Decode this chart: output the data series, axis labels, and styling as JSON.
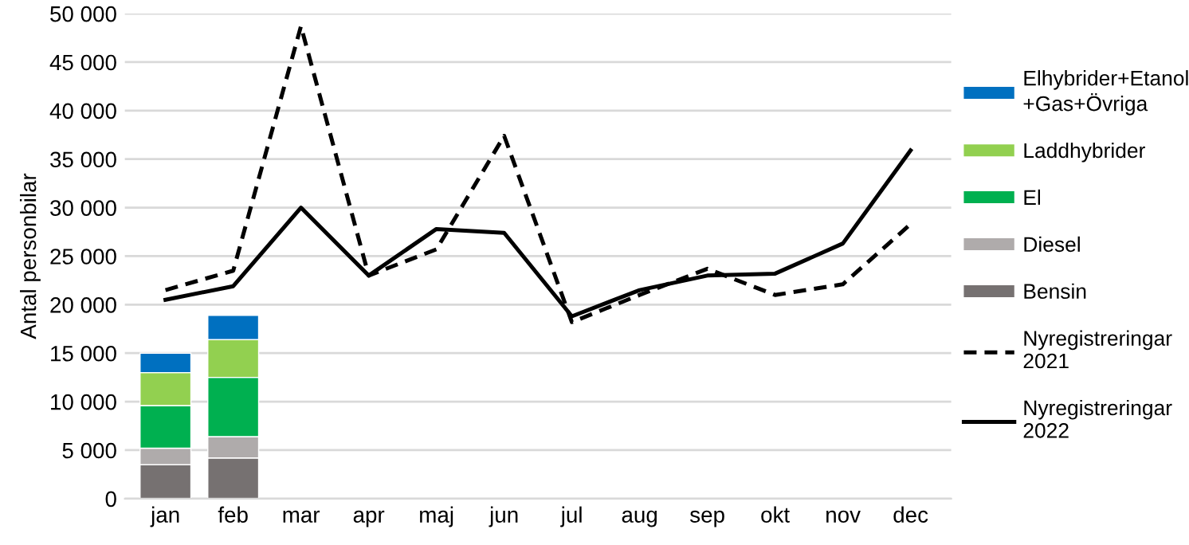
{
  "chart_data": {
    "type": "bar",
    "stacked": true,
    "ylabel": "Antal personbilar",
    "categories": [
      "jan",
      "feb",
      "mar",
      "apr",
      "maj",
      "jun",
      "jul",
      "aug",
      "sep",
      "okt",
      "nov",
      "dec"
    ],
    "series": [
      {
        "name": "Bensin",
        "color": "#767171",
        "values": [
          3500,
          4200,
          null,
          null,
          null,
          null,
          null,
          null,
          null,
          null,
          null,
          null
        ]
      },
      {
        "name": "Diesel",
        "color": "#afabab",
        "values": [
          1700,
          2200,
          null,
          null,
          null,
          null,
          null,
          null,
          null,
          null,
          null,
          null
        ]
      },
      {
        "name": "El",
        "color": "#00b050",
        "values": [
          4400,
          6100,
          null,
          null,
          null,
          null,
          null,
          null,
          null,
          null,
          null,
          null
        ]
      },
      {
        "name": "Laddhybrider",
        "color": "#92d050",
        "values": [
          3400,
          3900,
          null,
          null,
          null,
          null,
          null,
          null,
          null,
          null,
          null,
          null
        ]
      },
      {
        "name": "Elhybrider+Etanol\n+Gas+Övriga",
        "color": "#0070c0",
        "values": [
          2000,
          2500,
          null,
          null,
          null,
          null,
          null,
          null,
          null,
          null,
          null,
          null
        ]
      },
      {
        "name": "Nyregistreringar\n2021",
        "type": "line",
        "line_style": "dashed",
        "color": "#000000",
        "values": [
          21500,
          23500,
          48700,
          23000,
          25700,
          37400,
          18200,
          21000,
          23700,
          21000,
          22100,
          28300
        ]
      },
      {
        "name": "Nyregistreringar\n2022",
        "type": "line",
        "line_style": "solid",
        "color": "#000000",
        "values": [
          20500,
          21900,
          30000,
          23000,
          27800,
          27400,
          18800,
          21500,
          23000,
          23200,
          26300,
          35900
        ]
      }
    ],
    "ylim": [
      0,
      50000
    ],
    "yticks": [
      {
        "value": 0,
        "label": "0"
      },
      {
        "value": 5000,
        "label": "5 000"
      },
      {
        "value": 10000,
        "label": "10 000"
      },
      {
        "value": 15000,
        "label": "15 000"
      },
      {
        "value": 20000,
        "label": "20 000"
      },
      {
        "value": 25000,
        "label": "25 000"
      },
      {
        "value": 30000,
        "label": "30 000"
      },
      {
        "value": 35000,
        "label": "35 000"
      },
      {
        "value": 40000,
        "label": "40 000"
      },
      {
        "value": 45000,
        "label": "45 000"
      },
      {
        "value": 50000,
        "label": "50 000"
      }
    ],
    "grid": "y",
    "legend": "right",
    "marker": "none"
  }
}
